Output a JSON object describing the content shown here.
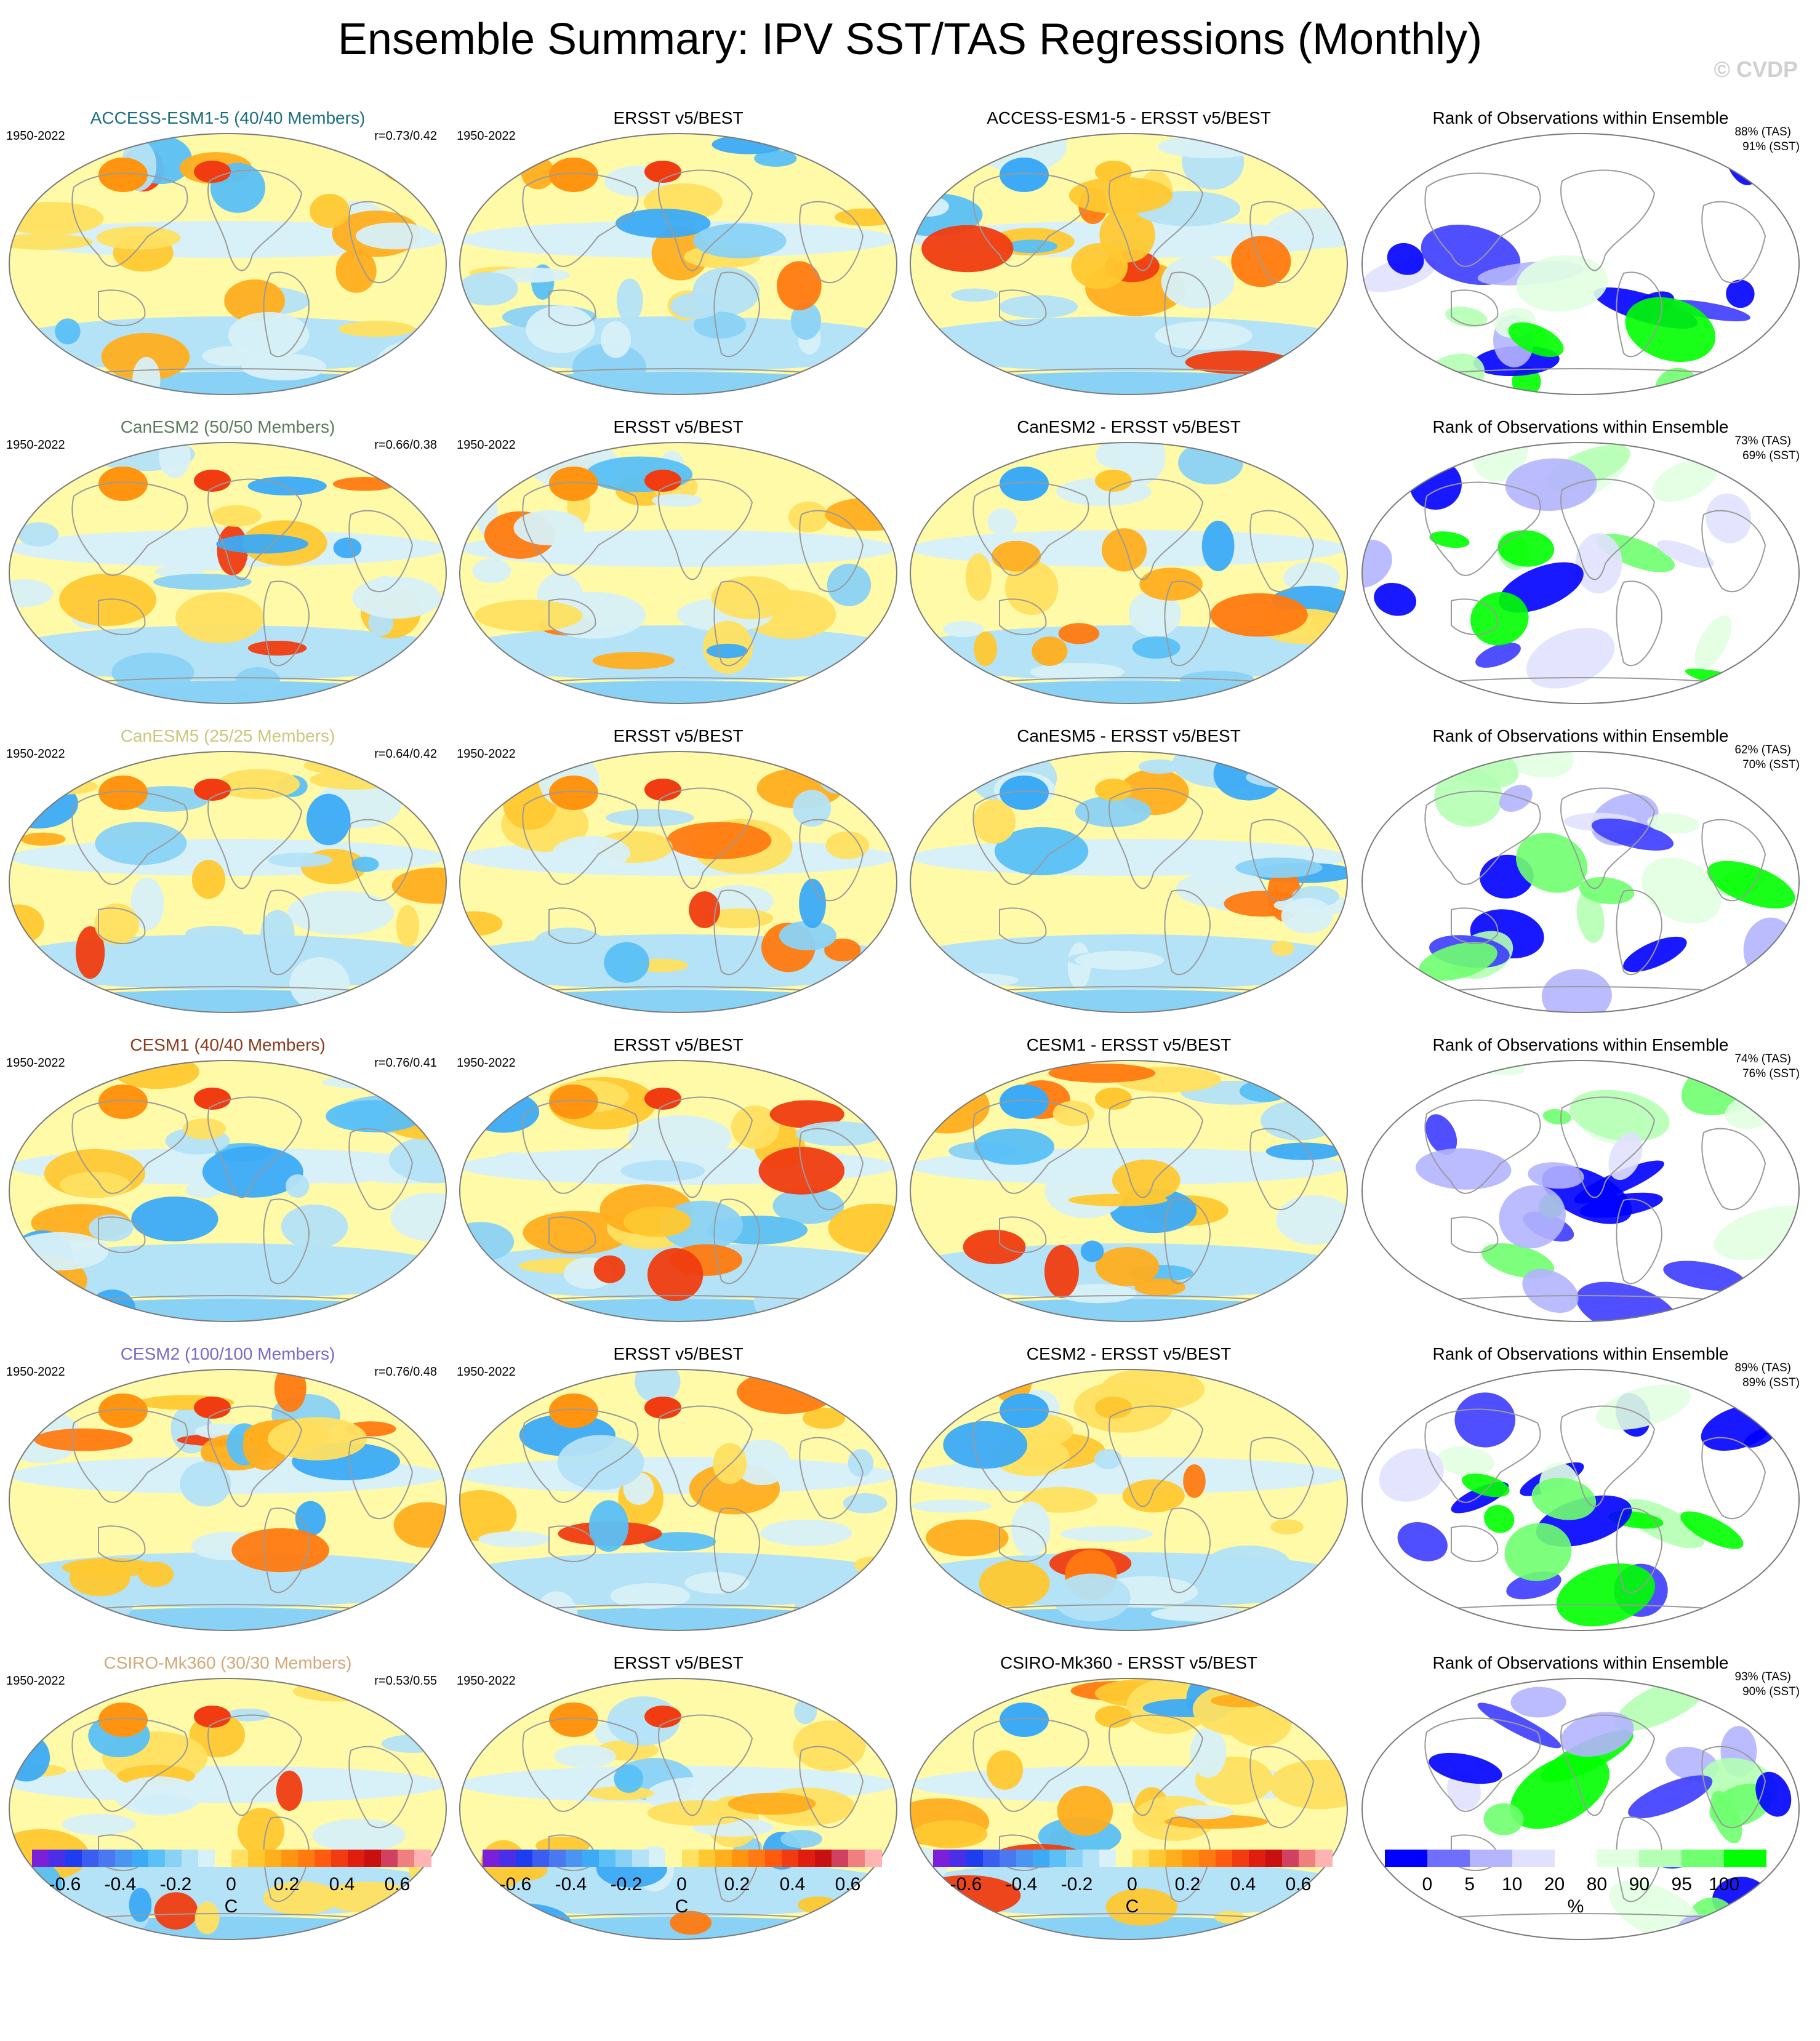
{
  "title": "Ensemble Summary: IPV SST/TAS Regressions (Monthly)",
  "copyright": "© CVDP",
  "rows": [
    {
      "model": "ACCESS-ESM1-5 (40/40 Members)",
      "model_color": "#1a6f7f",
      "period": "1950-2022",
      "corr": "r=0.73/0.42",
      "obs_title": "ERSST v5/BEST",
      "diff_title": "ACCESS-ESM1-5 - ERSST v5/BEST",
      "rank_title": "Rank of Observations within Ensemble",
      "rank_tas": "88% (TAS)",
      "rank_sst": "91% (SST)"
    },
    {
      "model": "CanESM2 (50/50 Members)",
      "model_color": "#5a7a5a",
      "period": "1950-2022",
      "corr": "r=0.66/0.38",
      "obs_title": "ERSST v5/BEST",
      "diff_title": "CanESM2 - ERSST v5/BEST",
      "rank_title": "Rank of Observations within Ensemble",
      "rank_tas": "73% (TAS)",
      "rank_sst": "69% (SST)"
    },
    {
      "model": "CanESM5 (25/25 Members)",
      "model_color": "#c8c87a",
      "period": "1950-2022",
      "corr": "r=0.64/0.42",
      "obs_title": "ERSST v5/BEST",
      "diff_title": "CanESM5 - ERSST v5/BEST",
      "rank_title": "Rank of Observations within Ensemble",
      "rank_tas": "62% (TAS)",
      "rank_sst": "70% (SST)"
    },
    {
      "model": "CESM1 (40/40 Members)",
      "model_color": "#8b3a1a",
      "period": "1950-2022",
      "corr": "r=0.76/0.41",
      "obs_title": "ERSST v5/BEST",
      "diff_title": "CESM1 - ERSST v5/BEST",
      "rank_title": "Rank of Observations within Ensemble",
      "rank_tas": "74% (TAS)",
      "rank_sst": "76% (SST)"
    },
    {
      "model": "CESM2 (100/100 Members)",
      "model_color": "#7b68c8",
      "period": "1950-2022",
      "corr": "r=0.76/0.48",
      "obs_title": "ERSST v5/BEST",
      "diff_title": "CESM2 - ERSST v5/BEST",
      "rank_title": "Rank of Observations within Ensemble",
      "rank_tas": "89% (TAS)",
      "rank_sst": "89% (SST)"
    },
    {
      "model": "CSIRO-Mk360 (30/30 Members)",
      "model_color": "#d2a878",
      "period": "1950-2022",
      "corr": "r=0.53/0.55",
      "obs_title": "ERSST v5/BEST",
      "diff_title": "CSIRO-Mk360 - ERSST v5/BEST",
      "rank_title": "Rank of Observations within Ensemble",
      "rank_tas": "93% (TAS)",
      "rank_sst": "90% (SST)"
    }
  ],
  "colorbars": {
    "regression": {
      "colors": [
        "#7b1fd9",
        "#4a2ee8",
        "#1e3cf0",
        "#3c5ef0",
        "#4a78f0",
        "#4a95f2",
        "#3caaf5",
        "#5ac0f5",
        "#8ad2f5",
        "#b4e2f7",
        "#d8f0f8",
        "#fffaa8",
        "#ffe060",
        "#ffc830",
        "#ffae1e",
        "#ff9410",
        "#ff7a10",
        "#ff5a10",
        "#f03c10",
        "#e01e10",
        "#c81010",
        "#d04060",
        "#f08080",
        "#ffb4b4"
      ],
      "ticks": [
        "-0.6",
        "-0.4",
        "-0.2",
        "0",
        "0.2",
        "0.4",
        "0.6"
      ],
      "unit": "C"
    },
    "rank": {
      "colors": [
        "#0000ff",
        "#6f6fff",
        "#b4b4ff",
        "#e1e1ff",
        "#ffffff",
        "#e1ffe1",
        "#b4ffb4",
        "#6fff6f",
        "#00ff00"
      ],
      "ticks": [
        "0",
        "5",
        "10",
        "20",
        "80",
        "90",
        "95",
        "100"
      ],
      "unit": "%"
    }
  }
}
